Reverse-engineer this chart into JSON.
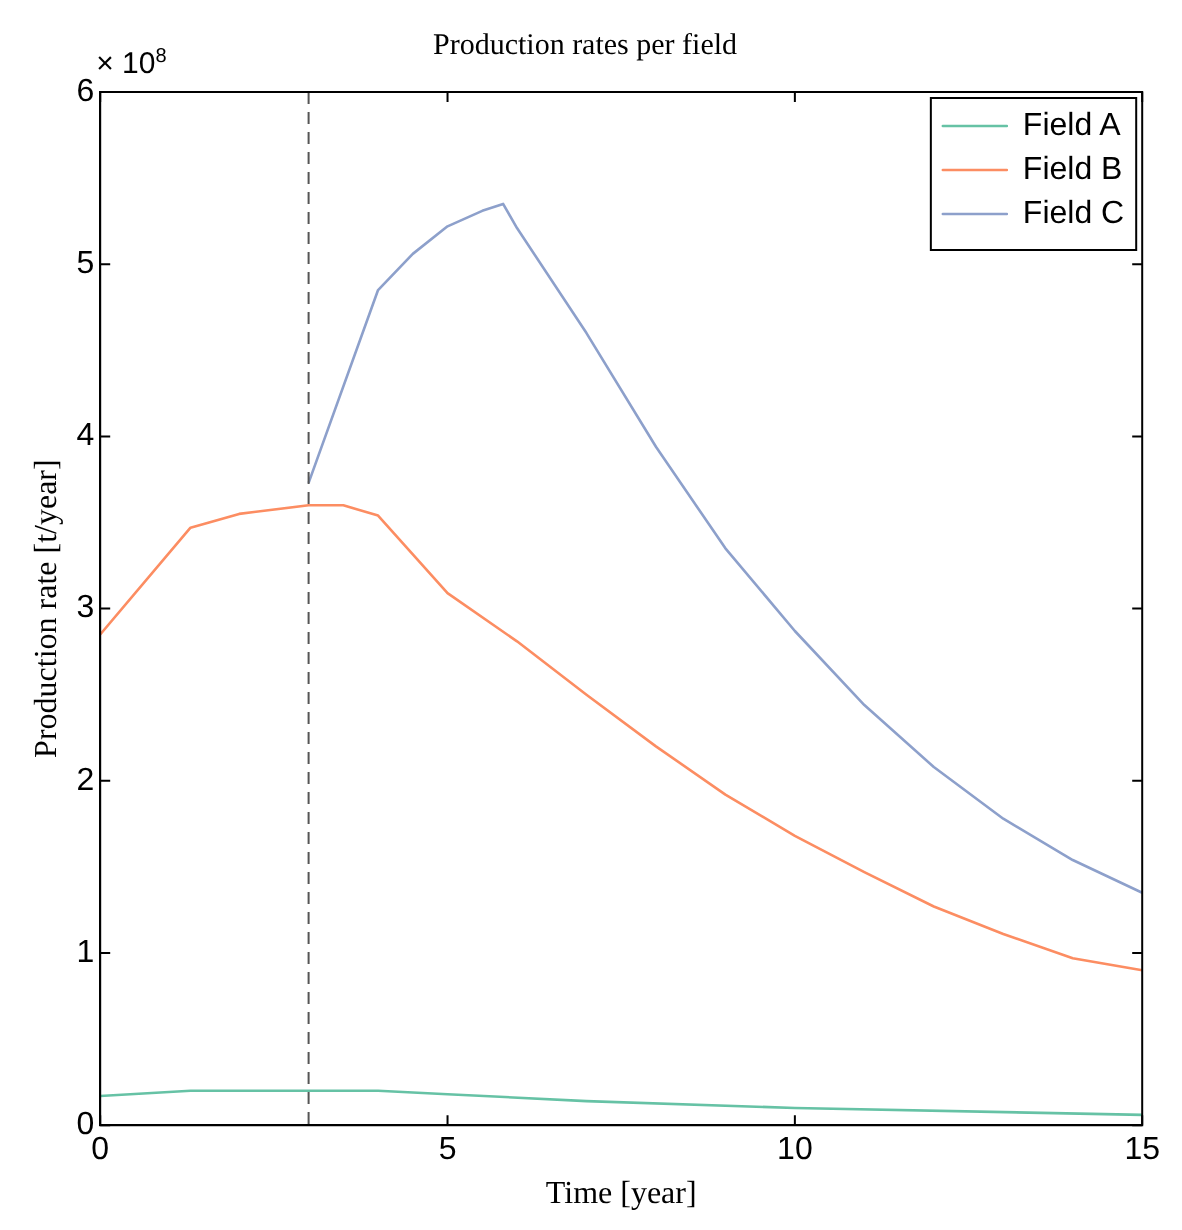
{
  "chart_data": {
    "type": "line",
    "title": "Production rates per field",
    "xlabel": "Time [year]",
    "ylabel": "Production rate [t/year]",
    "annotations": [
      "× 10$^{8}$"
    ],
    "xlim": [
      0,
      15
    ],
    "xticks": [
      0,
      5,
      10,
      15
    ],
    "ylim": [
      0,
      6
    ],
    "yticks": [
      0,
      1,
      2,
      3,
      4,
      5,
      6
    ],
    "grid": false,
    "legend": "top right",
    "marker": "none",
    "line_style": "solid",
    "ref_lines": [
      {
        "axis": "x",
        "value": 3,
        "color": "#555555",
        "line_style": "dashed"
      }
    ],
    "series": [
      {
        "name": "Field A",
        "color": "#66c2a5",
        "x": [
          0,
          1.3,
          2,
          3,
          4,
          5,
          7,
          10,
          15
        ],
        "values": [
          0.17,
          0.2,
          0.2,
          0.2,
          0.2,
          0.18,
          0.14,
          0.1,
          0.06
        ]
      },
      {
        "name": "Field B",
        "color": "#fc8d62",
        "x": [
          0,
          1.3,
          2,
          3,
          3.5,
          4,
          5,
          6,
          7,
          8,
          9,
          10,
          11,
          12,
          13,
          14,
          15
        ],
        "values": [
          2.85,
          3.47,
          3.55,
          3.6,
          3.6,
          3.54,
          3.09,
          2.81,
          2.5,
          2.2,
          1.92,
          1.68,
          1.47,
          1.27,
          1.11,
          0.97,
          0.9
        ]
      },
      {
        "name": "Field C",
        "color": "#8da0cb",
        "x": [
          3,
          4,
          4.5,
          5,
          5.5,
          5.8,
          6,
          7,
          8,
          9,
          10,
          11,
          12,
          13,
          14,
          15
        ],
        "values": [
          3.73,
          4.85,
          5.06,
          5.22,
          5.31,
          5.35,
          5.21,
          4.6,
          3.94,
          3.35,
          2.87,
          2.44,
          2.08,
          1.78,
          1.54,
          1.35
        ]
      }
    ]
  }
}
